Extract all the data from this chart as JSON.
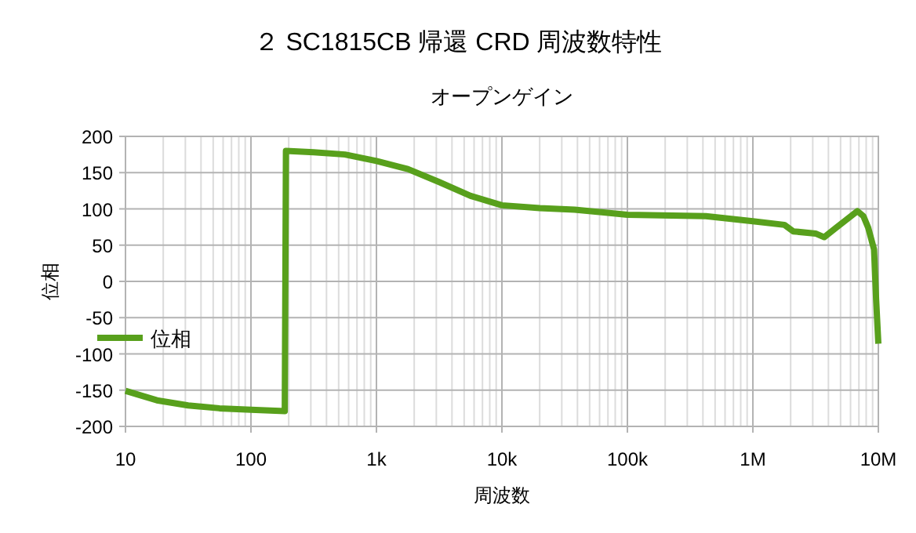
{
  "chart_data": {
    "type": "line",
    "title": "２ SC1815CB 帰還 CRD 周波数特性",
    "subtitle": "オープンゲイン",
    "xlabel": "周波数",
    "ylabel": "位相",
    "log": "x",
    "grid": true,
    "legend": "left",
    "marker": "none",
    "line_style": "solid",
    "xlim": [
      10,
      10000000
    ],
    "ylim": [
      -200,
      200
    ],
    "xticks": [
      10,
      100,
      {
        "value": 1000,
        "label": "1k"
      },
      {
        "value": 10000,
        "label": "10k"
      },
      {
        "value": 100000,
        "label": "100k"
      },
      {
        "value": 1000000,
        "label": "1M"
      },
      {
        "value": 10000000,
        "label": "10M"
      }
    ],
    "yticks": [
      -200,
      -150,
      -100,
      -50,
      0,
      50,
      100,
      150,
      200
    ],
    "series": [
      {
        "name": "位相",
        "color": "#58a01c",
        "x": [
          10,
          17.8,
          31.6,
          56,
          100,
          186,
          188,
          190,
          316,
          562,
          1000,
          1778,
          3162,
          5623,
          10000,
          20000,
          38000,
          100000,
          422000,
          1000000,
          1780000,
          2100000,
          3160000,
          3700000,
          4600000,
          6800000,
          7600000,
          8300000,
          9240000,
          9600000,
          10000000
        ],
        "values": [
          -151,
          -164,
          -171,
          -175,
          -177,
          -179,
          0,
          180,
          178,
          175,
          166,
          155,
          137,
          118,
          105,
          101,
          99,
          92,
          90,
          83,
          78,
          69,
          66,
          61,
          74,
          97,
          90,
          74,
          44,
          -25,
          -86
        ]
      }
    ]
  }
}
